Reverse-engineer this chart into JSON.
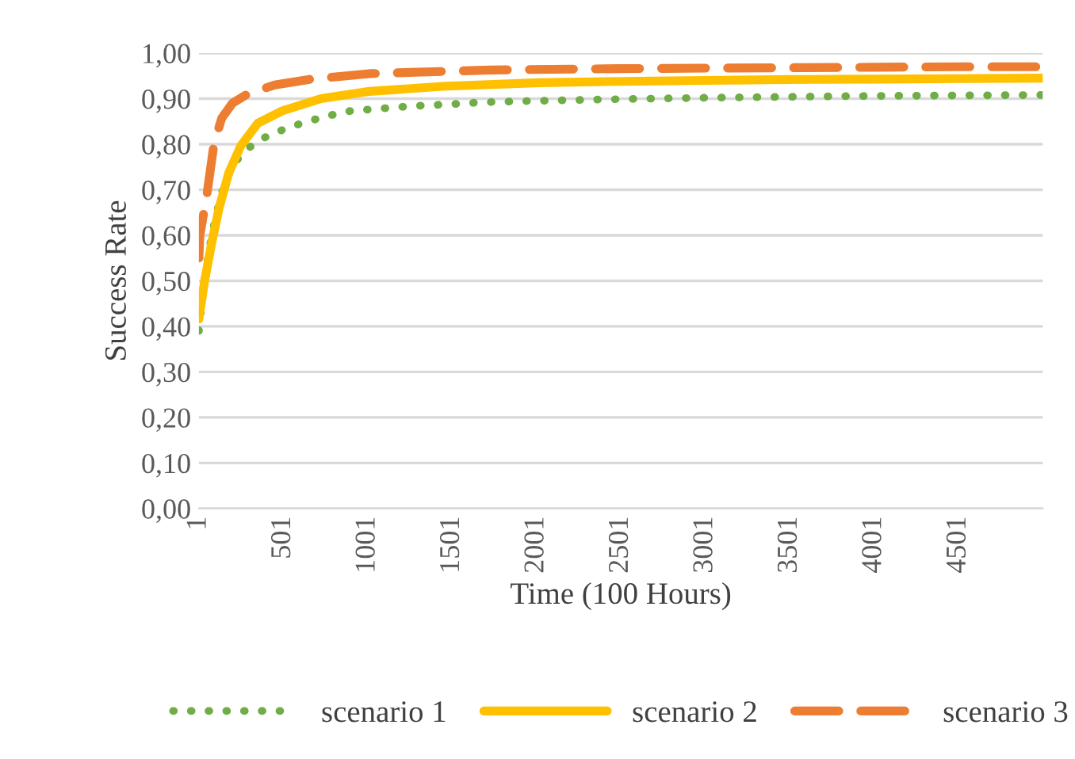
{
  "chart_data": {
    "type": "line",
    "xlabel": "Time (100 Hours)",
    "ylabel": "Success Rate",
    "xlim": [
      1,
      5000
    ],
    "xticks": [
      1,
      501,
      1001,
      1501,
      2001,
      2501,
      3001,
      3501,
      4001,
      4501
    ],
    "ylim": [
      0,
      1
    ],
    "yticks": [
      {
        "value": 0,
        "label": "0,00"
      },
      {
        "value": 0.1,
        "label": "0,10"
      },
      {
        "value": 0.2,
        "label": "0,20"
      },
      {
        "value": 0.3,
        "label": "0,30"
      },
      {
        "value": 0.4,
        "label": "0,40"
      },
      {
        "value": 0.5,
        "label": "0,50"
      },
      {
        "value": 0.6,
        "label": "0,60"
      },
      {
        "value": 0.7,
        "label": "0,70"
      },
      {
        "value": 0.8,
        "label": "0,80"
      },
      {
        "value": 0.9,
        "label": "0,90"
      },
      {
        "value": 1,
        "label": "1,00"
      }
    ],
    "grid": "y",
    "legend": "bottom",
    "series": [
      {
        "name": "scenario 1",
        "color": "#70ad47",
        "line_style": "dotted",
        "x": [
          1,
          30,
          64,
          100,
          136,
          180,
          236,
          300,
          380,
          500,
          610,
          750,
          897,
          1100,
          1270,
          1500,
          1672,
          1960,
          2500,
          3000,
          3500,
          4000,
          4500,
          5000
        ],
        "values": [
          0.39,
          0.49,
          0.574,
          0.64,
          0.693,
          0.735,
          0.77,
          0.793,
          0.813,
          0.832,
          0.846,
          0.861,
          0.873,
          0.879,
          0.884,
          0.888,
          0.892,
          0.895,
          0.899,
          0.902,
          0.904,
          0.906,
          0.907,
          0.908
        ]
      },
      {
        "name": "scenario 2",
        "color": "#ffc000",
        "line_style": "solid",
        "x": [
          1,
          35,
          78,
          121,
          178,
          250,
          350,
          494,
          724,
          1011,
          1442,
          2017,
          2500,
          3000,
          3500,
          4000,
          4500,
          5000
        ],
        "values": [
          0.416,
          0.5,
          0.585,
          0.66,
          0.737,
          0.797,
          0.846,
          0.873,
          0.9,
          0.916,
          0.927,
          0.935,
          0.938,
          0.94,
          0.942,
          0.943,
          0.944,
          0.945
        ]
      },
      {
        "name": "scenario 3",
        "color": "#ed7d31",
        "line_style": "dashed",
        "x": [
          1,
          7,
          50,
          90,
          136,
          200,
          293,
          450,
          667,
          1011,
          1730,
          2500,
          3000,
          3500,
          4000,
          4500,
          5000
        ],
        "values": [
          0.55,
          0.6,
          0.693,
          0.8,
          0.857,
          0.89,
          0.911,
          0.93,
          0.943,
          0.955,
          0.963,
          0.966,
          0.967,
          0.968,
          0.969,
          0.97,
          0.97
        ]
      }
    ]
  }
}
